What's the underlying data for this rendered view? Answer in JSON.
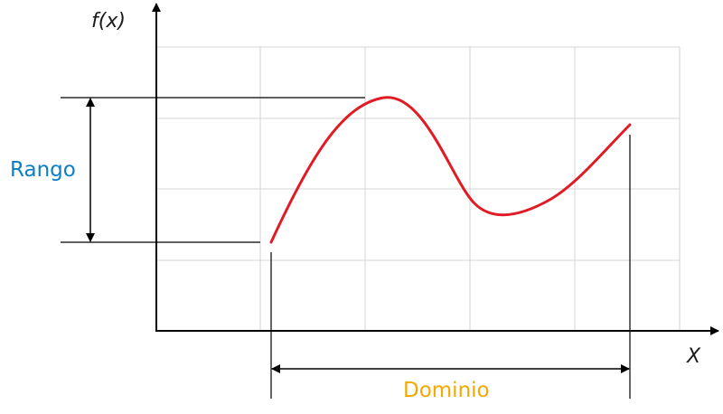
{
  "labels": {
    "y_axis": "f(x)",
    "x_axis": "X",
    "range": "Rango",
    "domain": "Dominio"
  },
  "colors": {
    "curve": "#e01b24",
    "range_text": "#0b7fc4",
    "domain_text": "#f2a900",
    "grid": "#d4d4d4",
    "axes": "#000000"
  }
}
